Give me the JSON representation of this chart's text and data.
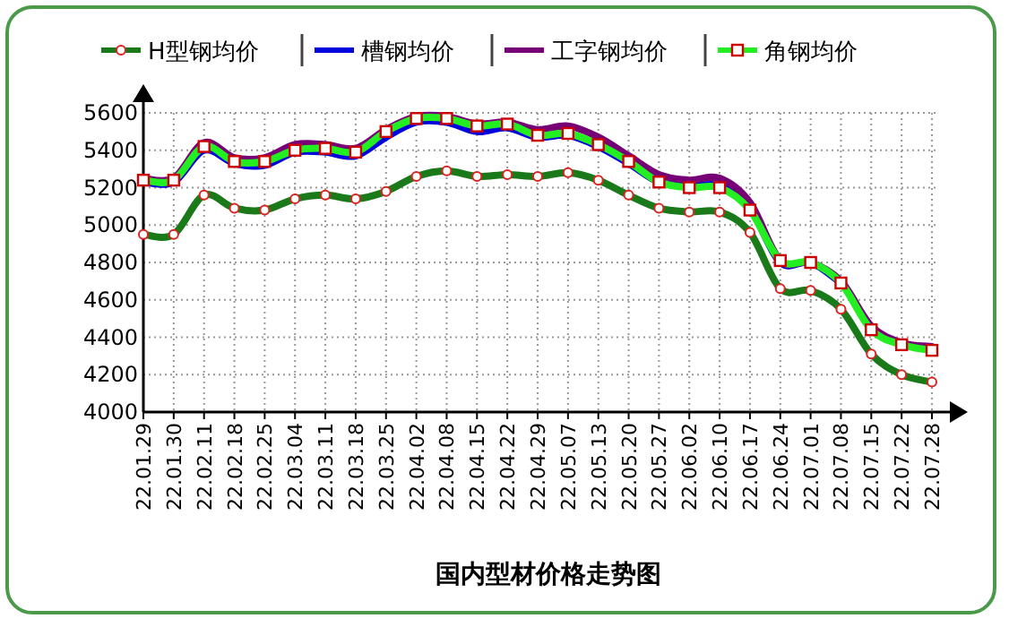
{
  "chart_data": {
    "type": "line",
    "title": "国内型材价格走势图",
    "categories": [
      "22.01.29",
      "22.01.30",
      "22.02.11",
      "22.02.18",
      "22.02.25",
      "22.03.04",
      "22.03.11",
      "22.03.18",
      "22.03.25",
      "22.04.02",
      "22.04.08",
      "22.04.15",
      "22.04.22",
      "22.04.29",
      "22.05.07",
      "22.05.13",
      "22.05.20",
      "22.05.27",
      "22.06.02",
      "22.06.10",
      "22.06.17",
      "22.06.24",
      "22.07.01",
      "22.07.08",
      "22.07.15",
      "22.07.22",
      "22.07.28"
    ],
    "series": [
      {
        "name": "H型钢均价",
        "color": "#1a7a1a",
        "marker": "circle",
        "values": [
          4950,
          4950,
          5160,
          5090,
          5080,
          5140,
          5160,
          5140,
          5180,
          5260,
          5290,
          5260,
          5270,
          5260,
          5280,
          5240,
          5160,
          5090,
          5070,
          5070,
          4960,
          4660,
          4650,
          4550,
          4310,
          4200,
          4160
        ]
      },
      {
        "name": "槽钢均价",
        "color": "#0000dd",
        "marker": "none",
        "values": [
          5230,
          5230,
          5400,
          5330,
          5320,
          5390,
          5390,
          5370,
          5470,
          5550,
          5550,
          5500,
          5520,
          5470,
          5480,
          5420,
          5330,
          5230,
          5210,
          5210,
          5090,
          4800,
          4800,
          4690,
          null,
          null,
          null
        ]
      },
      {
        "name": "工字钢均价",
        "color": "#770077",
        "marker": "none",
        "values": [
          5250,
          5250,
          5440,
          5360,
          5360,
          5430,
          5430,
          5410,
          5510,
          5580,
          5580,
          5540,
          5550,
          5510,
          5530,
          5470,
          5370,
          5270,
          5240,
          5250,
          5120,
          4810,
          4800,
          4700,
          4460,
          4370,
          4350
        ]
      },
      {
        "name": "角钢均价",
        "color": "#22ee22",
        "marker": "square",
        "values": [
          5240,
          5240,
          5420,
          5340,
          5340,
          5400,
          5410,
          5390,
          5500,
          5570,
          5570,
          5530,
          5540,
          5480,
          5490,
          5430,
          5340,
          5230,
          5200,
          5200,
          5080,
          4810,
          4800,
          4690,
          4440,
          4360,
          4330
        ]
      }
    ],
    "ylim": [
      4000,
      5600
    ],
    "yticks": [
      4000,
      4200,
      4400,
      4600,
      4800,
      5000,
      5200,
      5400,
      5600
    ],
    "grid": true,
    "legend": "top"
  }
}
